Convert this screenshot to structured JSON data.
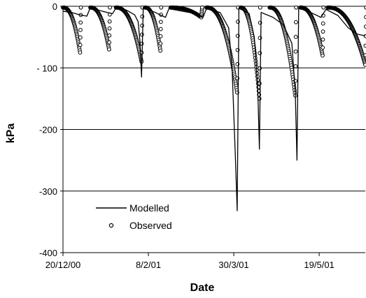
{
  "chart_data": {
    "type": "line",
    "title": "",
    "xlabel": "Date",
    "ylabel": "kPa",
    "x_axis": "date",
    "xlim": [
      "2000-12-20",
      "2001-06-15"
    ],
    "ylim": [
      -400,
      0
    ],
    "y_ticks": [
      0,
      -100,
      -200,
      -300,
      -400
    ],
    "y_tick_labels": [
      "0",
      "- 100",
      "-200",
      "-300",
      "-400"
    ],
    "x_ticks": [
      "2000-12-20",
      "2001-02-08",
      "2001-03-30",
      "2001-05-19"
    ],
    "x_tick_labels": [
      "20/12/00",
      "8/2/01",
      "30/3/01",
      "19/5/01"
    ],
    "grid": {
      "horizontal": true,
      "vertical": false
    },
    "legend": {
      "placement": "bottom-left",
      "entries": [
        "Modelled",
        "Observed"
      ]
    },
    "series": [
      {
        "name": "Modelled",
        "style": "line",
        "color": "#000000",
        "points": [
          [
            "2000-12-20",
            -8
          ],
          [
            "2000-12-25",
            -10
          ],
          [
            "2000-12-30",
            -14
          ],
          [
            "2001-01-03",
            -16
          ],
          [
            "2001-01-05",
            -2
          ],
          [
            "2001-01-12",
            -8
          ],
          [
            "2001-01-18",
            -12
          ],
          [
            "2001-01-20",
            -3
          ],
          [
            "2001-01-26",
            -6
          ],
          [
            "2001-01-31",
            -14
          ],
          [
            "2001-02-02",
            -25
          ],
          [
            "2001-02-03",
            -55
          ],
          [
            "2001-02-04",
            -115
          ],
          [
            "2001-02-05",
            -2
          ],
          [
            "2001-02-12",
            -10
          ],
          [
            "2001-02-18",
            -18
          ],
          [
            "2001-02-20",
            -4
          ],
          [
            "2001-02-28",
            -8
          ],
          [
            "2001-03-08",
            -12
          ],
          [
            "2001-03-12",
            -18
          ],
          [
            "2001-03-14",
            -4
          ],
          [
            "2001-03-22",
            -10
          ],
          [
            "2001-03-27",
            -35
          ],
          [
            "2001-03-29",
            -100
          ],
          [
            "2001-03-31",
            -250
          ],
          [
            "2001-04-01",
            -332
          ],
          [
            "2001-04-02",
            -3
          ],
          [
            "2001-04-08",
            -12
          ],
          [
            "2001-04-11",
            -50
          ],
          [
            "2001-04-13",
            -130
          ],
          [
            "2001-04-14",
            -232
          ],
          [
            "2001-04-15",
            -10
          ],
          [
            "2001-04-22",
            -18
          ],
          [
            "2001-04-28",
            -30
          ],
          [
            "2001-05-03",
            -60
          ],
          [
            "2001-05-05",
            -140
          ],
          [
            "2001-05-06",
            -250
          ],
          [
            "2001-05-07",
            -3
          ],
          [
            "2001-05-14",
            -10
          ],
          [
            "2001-05-20",
            -18
          ],
          [
            "2001-05-23",
            -5
          ],
          [
            "2001-05-30",
            -15
          ],
          [
            "2001-06-05",
            -35
          ],
          [
            "2001-06-10",
            -45
          ],
          [
            "2001-06-15",
            -48
          ]
        ]
      },
      {
        "name": "Observed",
        "style": "markers",
        "marker": "open-circle",
        "color": "#000000",
        "episodes": [
          [
            "2000-12-20",
            "2000-12-30",
            -75
          ],
          [
            "2001-01-05",
            "2001-01-16",
            -70
          ],
          [
            "2001-01-20",
            "2001-02-04",
            -90
          ],
          [
            "2001-02-06",
            "2001-02-15",
            -72
          ],
          [
            "2001-02-21",
            "2001-03-11",
            -18
          ],
          [
            "2001-03-14",
            "2001-04-01",
            -140
          ],
          [
            "2001-04-03",
            "2001-04-14",
            -150
          ],
          [
            "2001-04-20",
            "2001-05-05",
            -145
          ],
          [
            "2001-05-08",
            "2001-05-21",
            -80
          ],
          [
            "2001-05-24",
            "2001-06-15",
            -95
          ]
        ]
      }
    ]
  }
}
